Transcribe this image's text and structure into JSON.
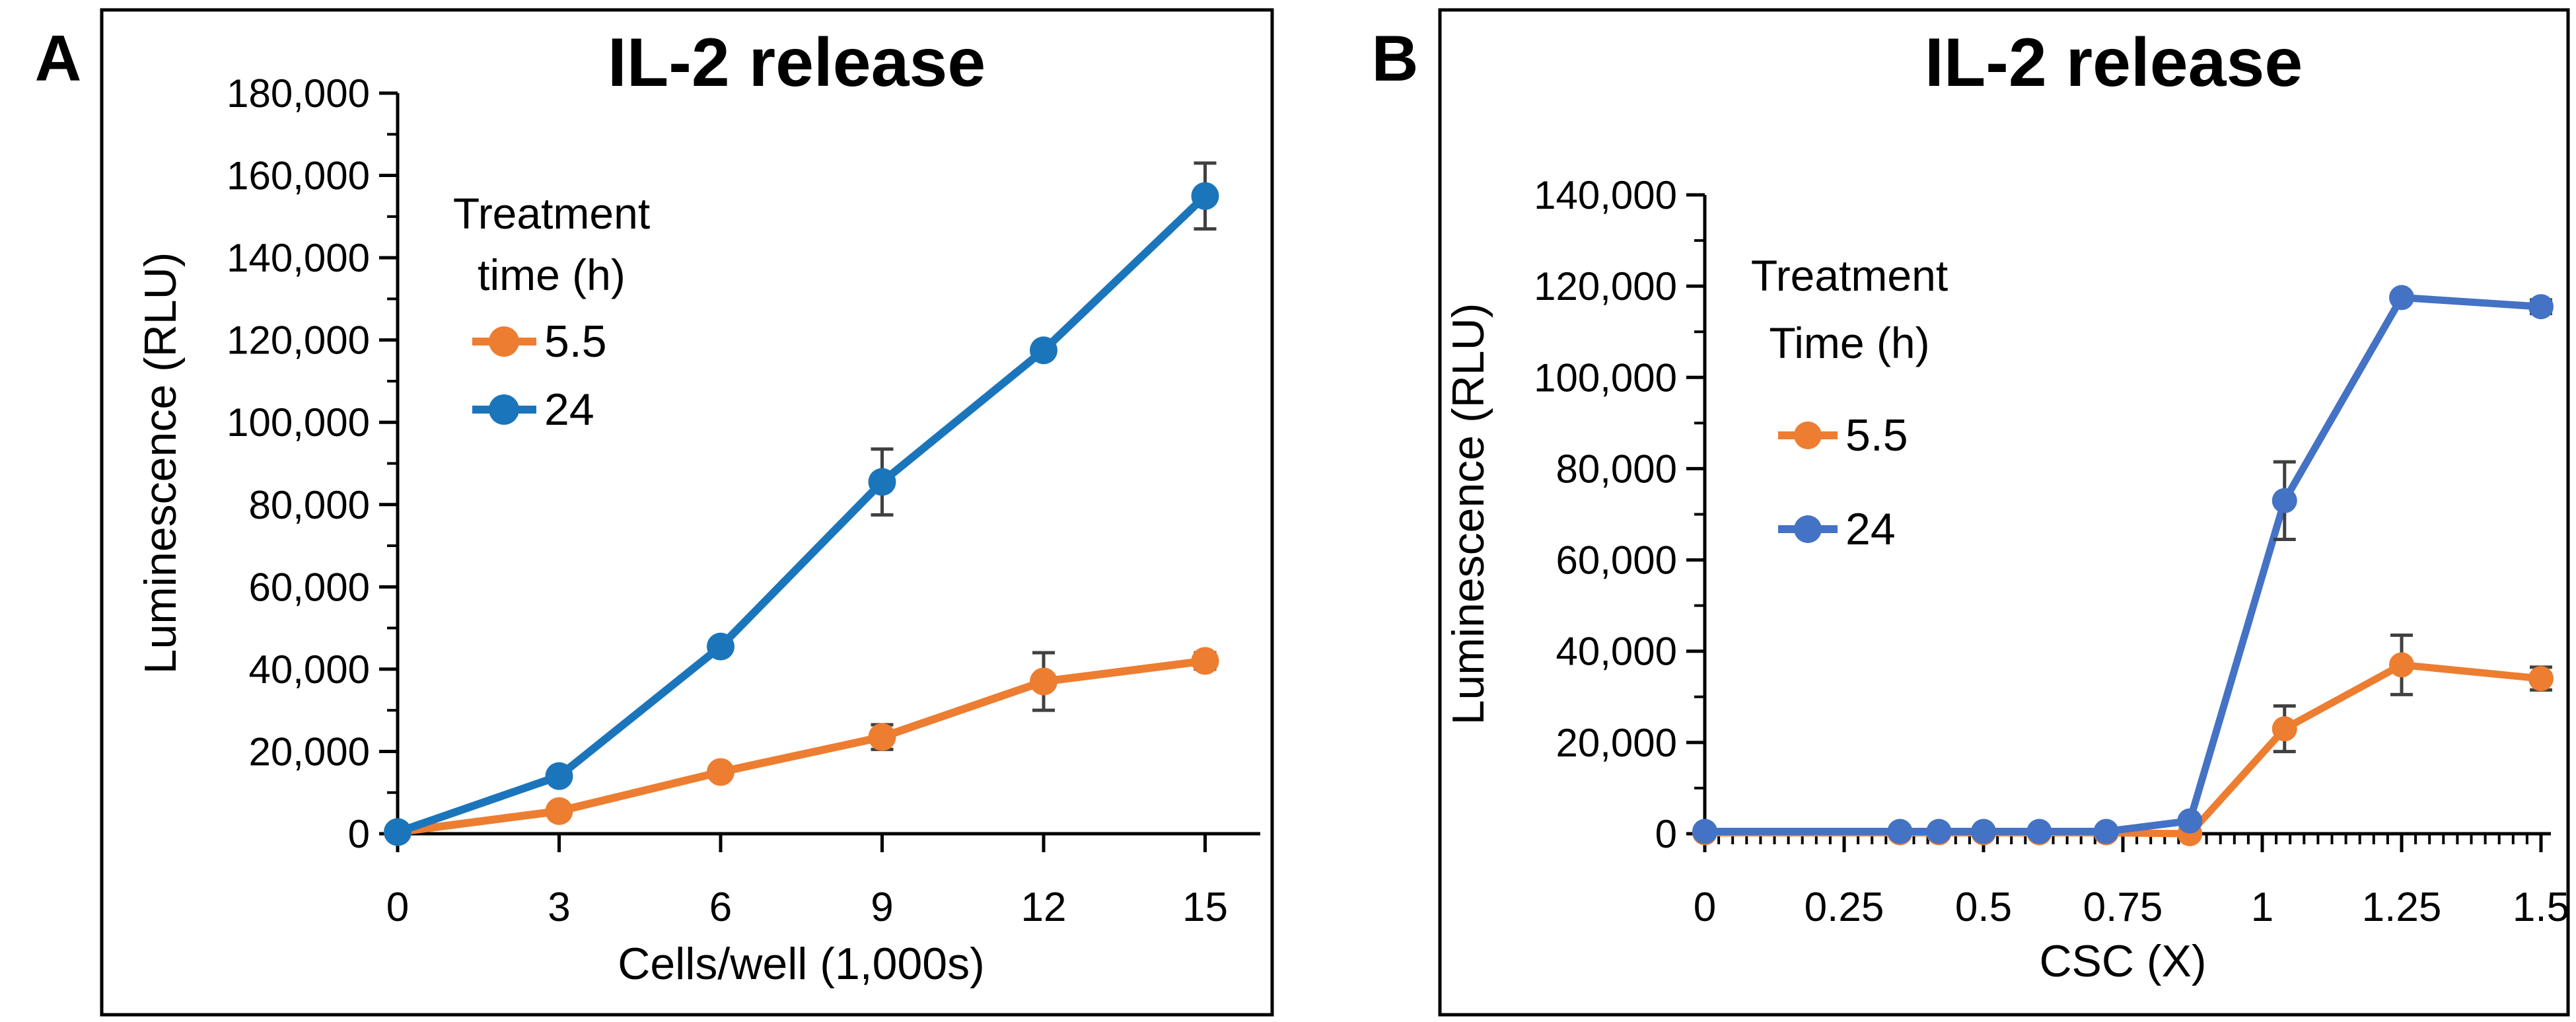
{
  "figure": {
    "background": "#ffffff",
    "panel_letters": {
      "a": "A",
      "b": "B"
    }
  },
  "chart_data": [
    {
      "type": "line",
      "panel": "A",
      "title": "IL-2 release",
      "xlabel": "Cells/well (1,000s)",
      "ylabel": "Luminescence (RLU)",
      "xlim": [
        0,
        16
      ],
      "ylim": [
        0,
        180000
      ],
      "xticks": [
        0,
        3,
        6,
        9,
        12,
        15
      ],
      "xtick_labels": [
        "0",
        "3",
        "6",
        "9",
        "12",
        "15"
      ],
      "ytick_step": 20000,
      "y_minor_step": 10000,
      "x_minor_step": null,
      "grid": false,
      "legend_position": "upper-left-inside",
      "legend_title_lines": [
        "Treatment",
        "time (h)"
      ],
      "error_bar_color": "#404040",
      "x": [
        0,
        3,
        6,
        9,
        12,
        15
      ],
      "series": [
        {
          "name": "5.5",
          "color": "#ED7D31",
          "values": [
            400,
            5500,
            15000,
            23500,
            37000,
            42000
          ],
          "errors": [
            0,
            0,
            0,
            3000,
            7000,
            2000
          ]
        },
        {
          "name": "24",
          "color": "#1B75BB",
          "values": [
            400,
            14000,
            45500,
            85500,
            117500,
            155000
          ],
          "errors": [
            0,
            0,
            0,
            8000,
            0,
            8000
          ]
        }
      ]
    },
    {
      "type": "line",
      "panel": "B",
      "title": "IL-2 release",
      "xlabel": "CSC (X)",
      "ylabel": "Luminescence (RLU)",
      "xlim": [
        0,
        1.52
      ],
      "ylim": [
        0,
        140000
      ],
      "xticks": [
        0,
        0.25,
        0.5,
        0.75,
        1,
        1.25,
        1.5
      ],
      "xtick_labels": [
        "0",
        "0.25",
        "0.5",
        "0.75",
        "1",
        "1.25",
        "1.5"
      ],
      "ytick_step": 20000,
      "y_minor_step": 10000,
      "x_minor_step": 0.025,
      "grid": false,
      "legend_position": "center-left-inside",
      "legend_title_lines": [
        "Treatment",
        "Time (h)"
      ],
      "error_bar_color": "#404040",
      "x": [
        0,
        0.35,
        0.42,
        0.5,
        0.6,
        0.72,
        0.87,
        1.04,
        1.25,
        1.5
      ],
      "series": [
        {
          "name": "5.5",
          "color": "#ED7D31",
          "values": [
            200,
            200,
            200,
            200,
            200,
            200,
            0,
            23000,
            37000,
            34000
          ],
          "errors": [
            0,
            0,
            0,
            0,
            0,
            0,
            0,
            5000,
            6500,
            2500
          ]
        },
        {
          "name": "24",
          "color": "#4472C4",
          "values": [
            500,
            500,
            500,
            500,
            500,
            500,
            2800,
            73000,
            117500,
            115500
          ],
          "errors": [
            0,
            0,
            0,
            0,
            0,
            0,
            0,
            8500,
            0,
            1500
          ]
        }
      ]
    }
  ]
}
